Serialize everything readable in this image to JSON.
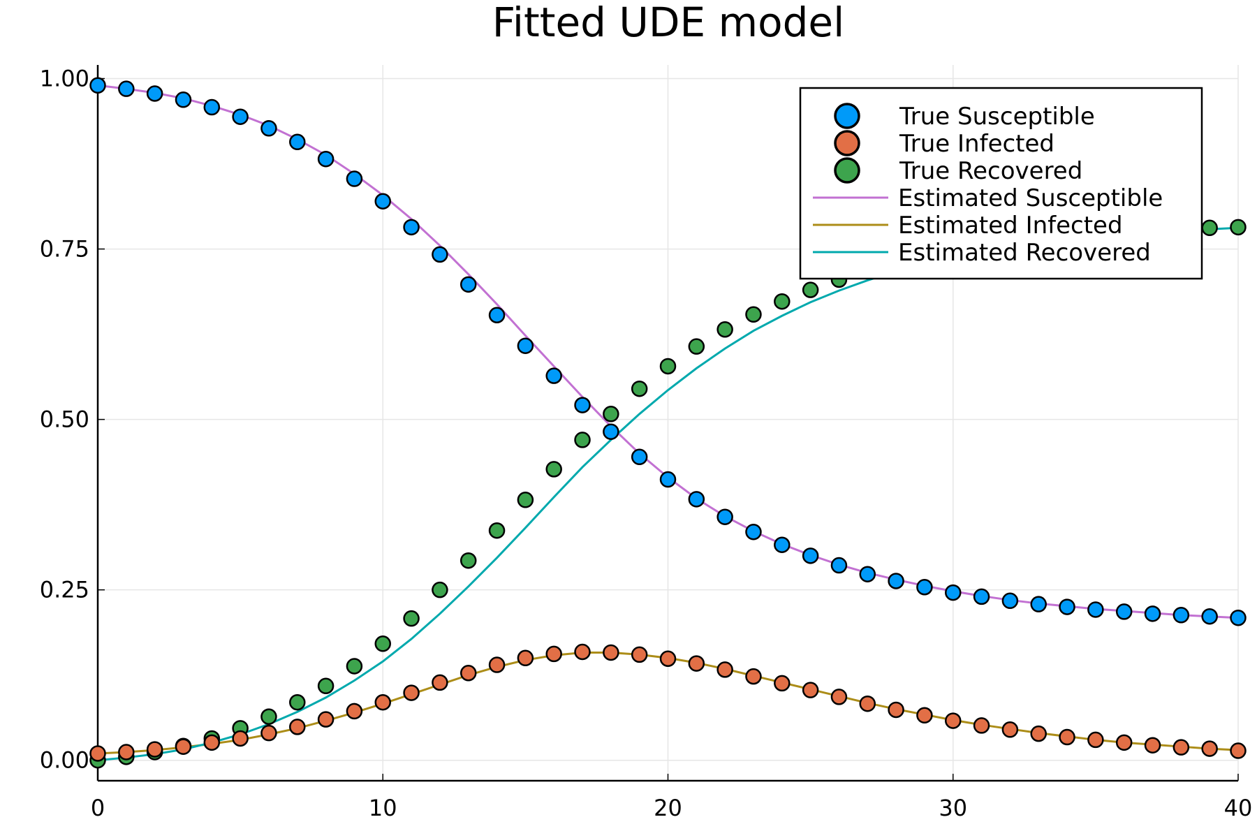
{
  "chart_data": {
    "type": "line",
    "title": "Fitted UDE model",
    "xlabel": "",
    "ylabel": "",
    "xlim": [
      0,
      40
    ],
    "ylim": [
      -0.03,
      1.02
    ],
    "xticks": [
      0,
      10,
      20,
      30,
      40
    ],
    "xtick_labels": [
      "0",
      "10",
      "20",
      "30",
      "40"
    ],
    "yticks": [
      0,
      0.25,
      0.5,
      0.75,
      1.0
    ],
    "ytick_labels": [
      "0.00",
      "0.25",
      "0.50",
      "0.75",
      "1.00"
    ],
    "grid": true,
    "legend_position": "top-right",
    "x": [
      0,
      1,
      2,
      3,
      4,
      5,
      6,
      7,
      8,
      9,
      10,
      11,
      12,
      13,
      14,
      15,
      16,
      17,
      18,
      19,
      20,
      21,
      22,
      23,
      24,
      25,
      26,
      27,
      28,
      29,
      30,
      31,
      32,
      33,
      34,
      35,
      36,
      37,
      38,
      39,
      40
    ],
    "series": [
      {
        "name": "True Susceptible",
        "kind": "scatter",
        "color": "#009af9",
        "values": [
          0.99,
          0.985,
          0.978,
          0.969,
          0.958,
          0.944,
          0.927,
          0.907,
          0.882,
          0.853,
          0.82,
          0.782,
          0.742,
          0.698,
          0.653,
          0.608,
          0.564,
          0.521,
          0.482,
          0.445,
          0.412,
          0.383,
          0.357,
          0.335,
          0.316,
          0.3,
          0.286,
          0.273,
          0.263,
          0.254,
          0.246,
          0.24,
          0.234,
          0.229,
          0.225,
          0.221,
          0.218,
          0.215,
          0.213,
          0.211,
          0.209
        ]
      },
      {
        "name": "True Infected",
        "kind": "scatter",
        "color": "#e26f46",
        "values": [
          0.01,
          0.012,
          0.016,
          0.02,
          0.026,
          0.032,
          0.04,
          0.049,
          0.06,
          0.072,
          0.085,
          0.099,
          0.114,
          0.128,
          0.14,
          0.15,
          0.156,
          0.159,
          0.158,
          0.155,
          0.149,
          0.142,
          0.133,
          0.123,
          0.113,
          0.103,
          0.093,
          0.083,
          0.074,
          0.066,
          0.058,
          0.051,
          0.045,
          0.039,
          0.034,
          0.03,
          0.026,
          0.022,
          0.019,
          0.017,
          0.014
        ]
      },
      {
        "name": "True Recovered",
        "kind": "scatter",
        "color": "#3da44d",
        "values": [
          0.0,
          0.005,
          0.012,
          0.021,
          0.032,
          0.047,
          0.064,
          0.085,
          0.109,
          0.138,
          0.171,
          0.208,
          0.25,
          0.293,
          0.337,
          0.382,
          0.427,
          0.47,
          0.508,
          0.545,
          0.578,
          0.607,
          0.632,
          0.654,
          0.673,
          0.69,
          0.705,
          0.718,
          0.729,
          0.738,
          0.746,
          0.753,
          0.759,
          0.764,
          0.768,
          0.772,
          0.775,
          0.778,
          0.78,
          0.781,
          0.782
        ]
      },
      {
        "name": "Estimated Susceptible",
        "kind": "line",
        "color": "#c271d2",
        "values": [
          0.99,
          0.985,
          0.979,
          0.971,
          0.96,
          0.947,
          0.931,
          0.911,
          0.888,
          0.86,
          0.829,
          0.794,
          0.755,
          0.713,
          0.669,
          0.623,
          0.578,
          0.533,
          0.49,
          0.45,
          0.415,
          0.384,
          0.358,
          0.336,
          0.317,
          0.301,
          0.287,
          0.275,
          0.265,
          0.256,
          0.248,
          0.241,
          0.235,
          0.23,
          0.226,
          0.222,
          0.219,
          0.216,
          0.213,
          0.211,
          0.209
        ]
      },
      {
        "name": "Estimated Infected",
        "kind": "line",
        "color": "#ac8d18",
        "values": [
          0.01,
          0.012,
          0.015,
          0.019,
          0.024,
          0.03,
          0.038,
          0.047,
          0.058,
          0.07,
          0.083,
          0.097,
          0.111,
          0.125,
          0.137,
          0.147,
          0.154,
          0.158,
          0.158,
          0.155,
          0.15,
          0.143,
          0.134,
          0.124,
          0.114,
          0.104,
          0.094,
          0.084,
          0.075,
          0.067,
          0.059,
          0.052,
          0.046,
          0.04,
          0.035,
          0.03,
          0.026,
          0.023,
          0.02,
          0.017,
          0.015
        ]
      },
      {
        "name": "Estimated Recovered",
        "kind": "line",
        "color": "#00a9ad",
        "values": [
          0.0,
          0.004,
          0.009,
          0.016,
          0.026,
          0.038,
          0.053,
          0.071,
          0.092,
          0.117,
          0.145,
          0.178,
          0.215,
          0.255,
          0.297,
          0.341,
          0.386,
          0.43,
          0.47,
          0.508,
          0.543,
          0.575,
          0.604,
          0.63,
          0.652,
          0.672,
          0.689,
          0.704,
          0.717,
          0.728,
          0.738,
          0.746,
          0.753,
          0.759,
          0.764,
          0.768,
          0.772,
          0.775,
          0.777,
          0.779,
          0.781
        ]
      }
    ]
  }
}
